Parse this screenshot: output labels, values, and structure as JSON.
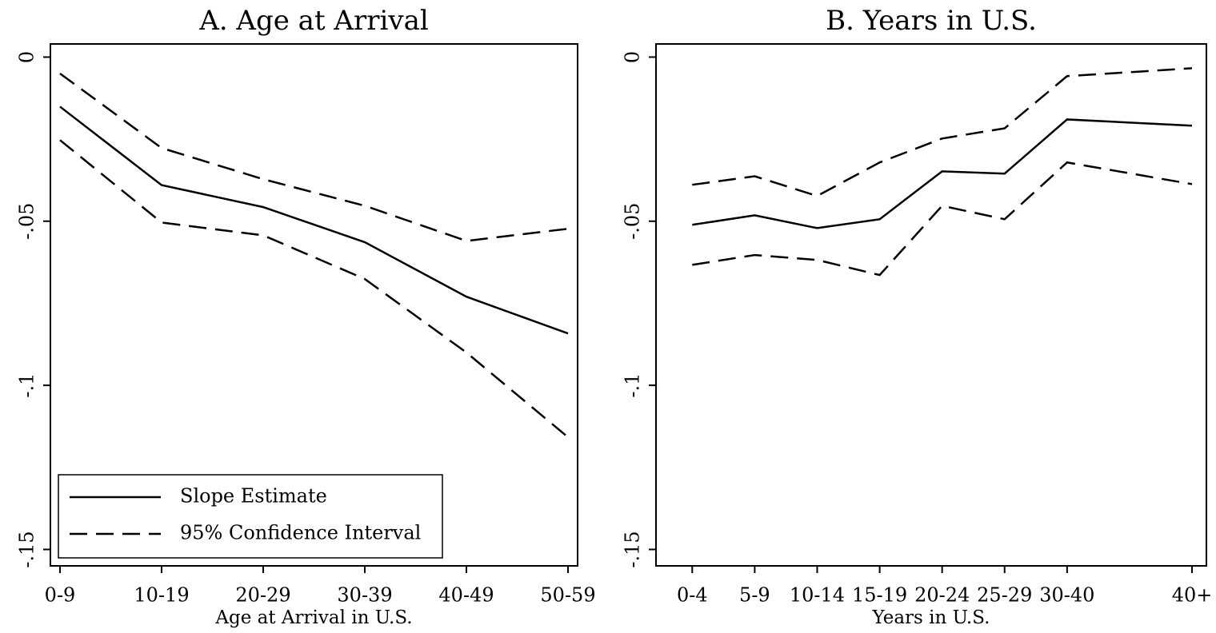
{
  "chart_data": [
    {
      "type": "line",
      "title": "A. Age at Arrival",
      "xlabel": "Age at Arrival in U.S.",
      "categories": [
        "0-9",
        "10-19",
        "20-29",
        "30-39",
        "40-49",
        "50-59"
      ],
      "ylim": [
        -0.155,
        0.004
      ],
      "yticks": [
        {
          "value": 0,
          "label": "0"
        },
        {
          "value": -0.05,
          "label": "-.05"
        },
        {
          "value": -0.1,
          "label": "-.1"
        },
        {
          "value": -0.15,
          "label": "-.15"
        }
      ],
      "legend": "lower left",
      "series": [
        {
          "name": "Slope Estimate",
          "color": "#000000",
          "dashed": false,
          "values": [
            -0.0151,
            -0.039,
            -0.0457,
            -0.0564,
            -0.073,
            -0.0842
          ]
        },
        {
          "name": "95% Confidence Interval",
          "color": "#000000",
          "dashed": true,
          "upper": [
            -0.005,
            -0.0277,
            -0.0372,
            -0.0453,
            -0.056,
            -0.0523
          ],
          "lower": [
            -0.0253,
            -0.0504,
            -0.0543,
            -0.0676,
            -0.09,
            -0.1158
          ]
        }
      ]
    },
    {
      "type": "line",
      "title": "B. Years in U.S.",
      "xlabel": "Years in U.S.",
      "x": [
        1,
        2,
        3,
        4,
        5,
        6,
        7,
        9
      ],
      "xlim": [
        0.42,
        9.23
      ],
      "xticks": [
        {
          "value": 1,
          "label": "0-4"
        },
        {
          "value": 2,
          "label": "5-9"
        },
        {
          "value": 3,
          "label": "10-14"
        },
        {
          "value": 4,
          "label": "15-19"
        },
        {
          "value": 5,
          "label": "20-24"
        },
        {
          "value": 6,
          "label": "25-29"
        },
        {
          "value": 7,
          "label": "30-40"
        },
        {
          "value": 9,
          "label": "40+"
        }
      ],
      "ylim": [
        -0.155,
        0.004
      ],
      "yticks": [
        {
          "value": 0,
          "label": "0"
        },
        {
          "value": -0.05,
          "label": "-.05"
        },
        {
          "value": -0.1,
          "label": "-.1"
        },
        {
          "value": -0.15,
          "label": "-.15"
        }
      ],
      "series": [
        {
          "color": "#000000",
          "dashed": false,
          "values": [
            -0.0511,
            -0.0482,
            -0.0521,
            -0.0494,
            -0.0348,
            -0.0355,
            -0.019,
            -0.0209
          ]
        },
        {
          "color": "#000000",
          "dashed": true,
          "upper": [
            -0.0389,
            -0.0363,
            -0.0423,
            -0.0321,
            -0.0248,
            -0.0217,
            -0.0058,
            -0.0034
          ],
          "lower": [
            -0.0633,
            -0.0603,
            -0.0618,
            -0.0664,
            -0.0453,
            -0.0494,
            -0.0321,
            -0.0387
          ]
        }
      ]
    }
  ]
}
